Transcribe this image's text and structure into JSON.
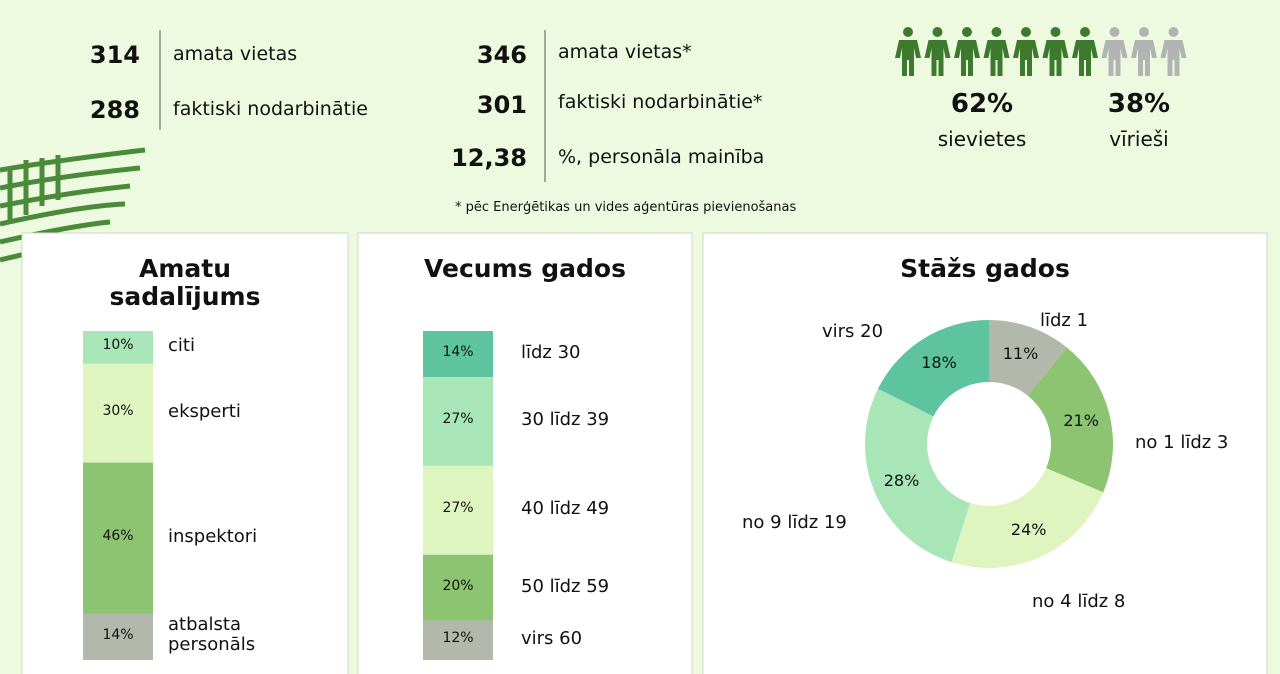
{
  "stats": {
    "left": [
      {
        "number": 314,
        "label": "amata vietas"
      },
      {
        "number": 288,
        "label": "faktiski nodarbinātie"
      }
    ],
    "right": [
      {
        "number": 346,
        "label": "amata vietas*"
      },
      {
        "number": 301,
        "label": "faktiski nodarbinātie*"
      },
      {
        "number": "12,38",
        "label": "%, personāla mainība"
      }
    ],
    "note": "* pēc Enerģētikas un vides aģentūras pievienošanas"
  },
  "gender": {
    "women": {
      "value": 62,
      "label": "62%",
      "caption": "sievietes",
      "color": "#3e7a2e"
    },
    "men": {
      "value": 38,
      "label": "38%",
      "caption": "vīrieši",
      "color": "#b3b3b3"
    }
  },
  "chart_data": [
    {
      "type": "stacked-bar",
      "title": "Amatu sadalījums",
      "categories": [
        "citi",
        "eksperti",
        "inspektori",
        "atbalsta personāls"
      ],
      "values": [
        10,
        30,
        46,
        14
      ],
      "value_labels": [
        "10%",
        "30%",
        "46%",
        "14%"
      ],
      "colors": [
        "#a8e6b8",
        "#dff5c0",
        "#8cc472",
        "#b3b8ad"
      ]
    },
    {
      "type": "stacked-bar",
      "title": "Vecums gados",
      "categories": [
        "līdz 30",
        "30 līdz 39",
        "40 līdz 49",
        "50 līdz 59",
        "virs 60"
      ],
      "values": [
        14,
        27,
        27,
        20,
        12
      ],
      "value_labels": [
        "14%",
        "27%",
        "27%",
        "20%",
        "12%"
      ],
      "colors": [
        "#5ec4a0",
        "#a8e6b8",
        "#dff5c0",
        "#8cc472",
        "#b3b8ad"
      ]
    },
    {
      "type": "donut",
      "title": "Stāžs gados",
      "categories": [
        "līdz 1",
        "no 1 līdz 3",
        "no 4 līdz 8",
        "no 9 līdz 19",
        "virs 20"
      ],
      "values": [
        11,
        21,
        24,
        28,
        18
      ],
      "value_labels": [
        "11%",
        "21%",
        "24%",
        "28%",
        "18%"
      ],
      "colors": [
        "#b3b8ad",
        "#8cc472",
        "#dff5c0",
        "#a8e6b8",
        "#5ec4a0"
      ]
    }
  ]
}
